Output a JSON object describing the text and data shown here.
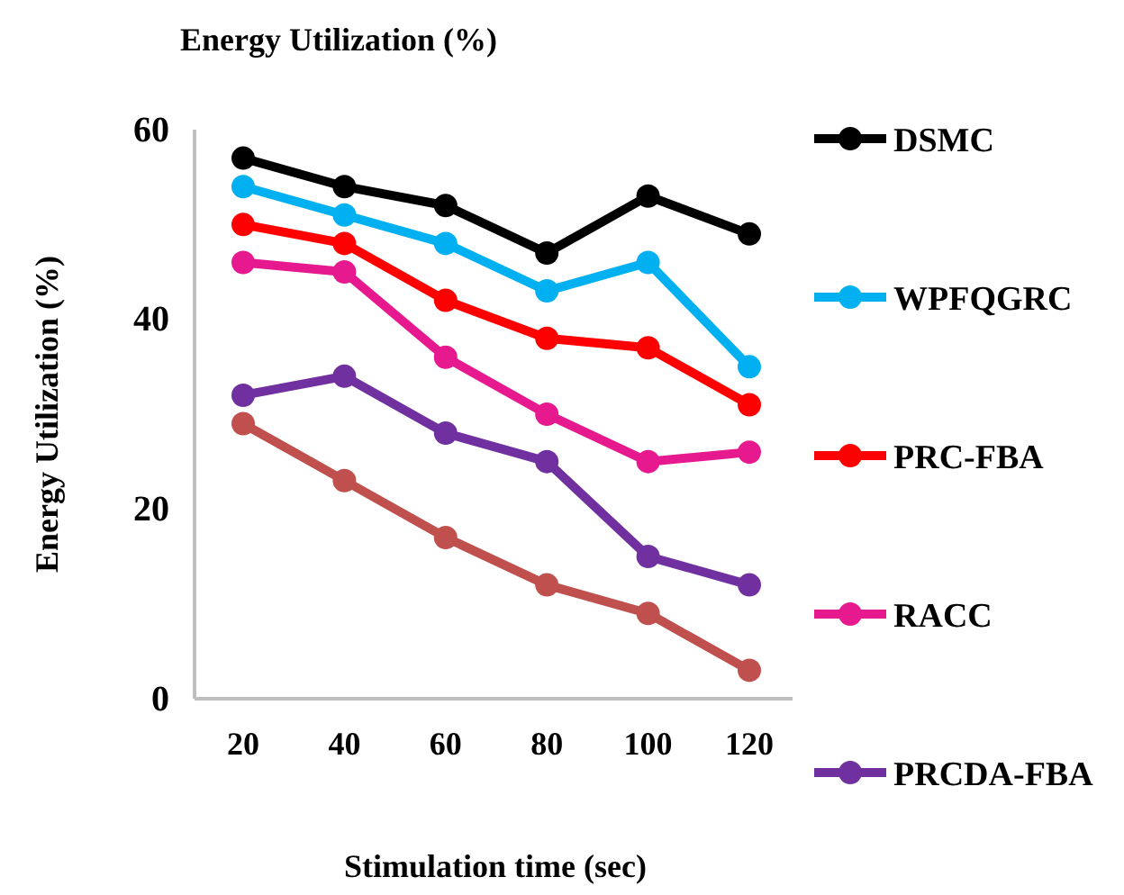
{
  "chart_data": {
    "type": "line",
    "title": "Energy Utilization (%)",
    "xlabel": "Stimulation time (sec)",
    "ylabel": "Energy Utilization (%)",
    "categories": [
      "20",
      "40",
      "60",
      "80",
      "100",
      "120"
    ],
    "ylim": [
      0,
      60
    ],
    "yticks": [
      0,
      20,
      40,
      60
    ],
    "grid": false,
    "legend": "right",
    "marker": "circle",
    "line_style": "solid",
    "series": [
      {
        "name": "DSMC",
        "color": "#000000",
        "values": [
          57,
          54,
          52,
          47,
          53,
          49
        ]
      },
      {
        "name": "WPFQGRC",
        "color": "#00b0f0",
        "values": [
          54,
          51,
          48,
          43,
          46,
          35
        ]
      },
      {
        "name": "PRC-FBA",
        "color": "#ff0000",
        "values": [
          50,
          48,
          42,
          38,
          37,
          31
        ]
      },
      {
        "name": "RACC",
        "color": "#e6198f",
        "values": [
          46,
          45,
          36,
          30,
          25,
          26
        ]
      },
      {
        "name": "PRCDA-FBA",
        "color": "#7030a0",
        "values": [
          32,
          34,
          28,
          25,
          15,
          12
        ]
      },
      {
        "color": "#c0504d",
        "values": [
          29,
          23,
          17,
          12,
          9,
          3
        ]
      }
    ]
  }
}
